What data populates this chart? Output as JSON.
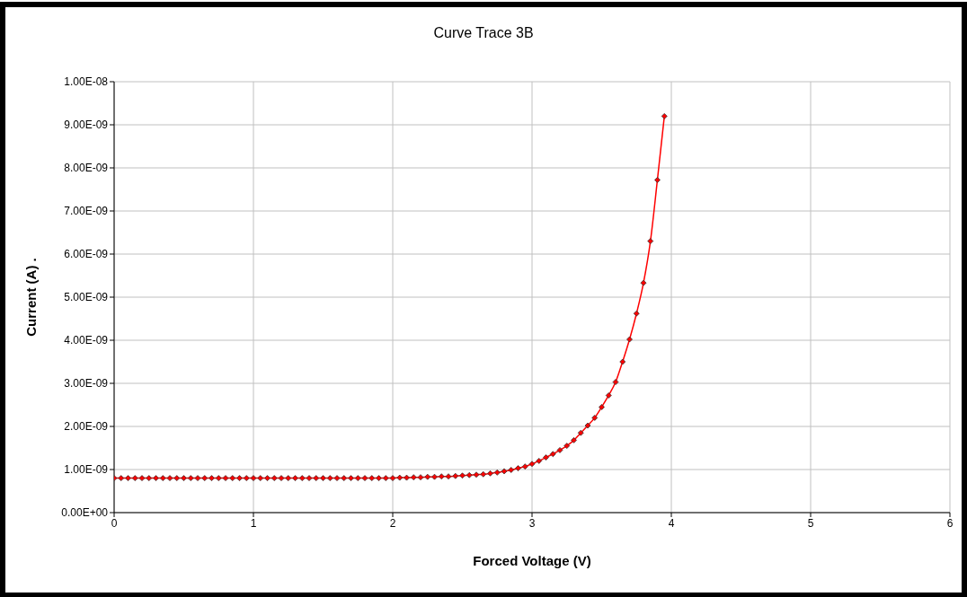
{
  "chart_data": {
    "type": "line",
    "title": "Curve Trace 3B",
    "xlabel": "Forced Voltage (V)",
    "ylabel": "Current (A)   .",
    "x": [
      0,
      0.05,
      0.1,
      0.15,
      0.2,
      0.25,
      0.3,
      0.35,
      0.4,
      0.45,
      0.5,
      0.55,
      0.6,
      0.65,
      0.7,
      0.75,
      0.8,
      0.85,
      0.9,
      0.95,
      1,
      1.05,
      1.1,
      1.15,
      1.2,
      1.25,
      1.3,
      1.35,
      1.4,
      1.45,
      1.5,
      1.55,
      1.6,
      1.65,
      1.7,
      1.75,
      1.8,
      1.85,
      1.9,
      1.95,
      2,
      2.05,
      2.1,
      2.15,
      2.2,
      2.25,
      2.3,
      2.35,
      2.4,
      2.45,
      2.5,
      2.55,
      2.6,
      2.65,
      2.7,
      2.75,
      2.8,
      2.85,
      2.9,
      2.95,
      3,
      3.05,
      3.1,
      3.15,
      3.2,
      3.25,
      3.3,
      3.35,
      3.4,
      3.45,
      3.5,
      3.55,
      3.6,
      3.65,
      3.7,
      3.75,
      3.8,
      3.85,
      3.9,
      3.95
    ],
    "series": [
      {
        "color": "#ff0000",
        "values": [
          8e-10,
          8e-10,
          8e-10,
          8e-10,
          8e-10,
          8e-10,
          8e-10,
          8e-10,
          8e-10,
          8e-10,
          8e-10,
          8e-10,
          8e-10,
          8e-10,
          8e-10,
          8e-10,
          8e-10,
          8e-10,
          8e-10,
          8e-10,
          8e-10,
          8e-10,
          8e-10,
          8e-10,
          8e-10,
          8e-10,
          8e-10,
          8e-10,
          8e-10,
          8e-10,
          8e-10,
          8e-10,
          8e-10,
          8e-10,
          8e-10,
          8e-10,
          8e-10,
          8e-10,
          8e-10,
          8e-10,
          8e-10,
          8.1e-10,
          8.1e-10,
          8.2e-10,
          8.2e-10,
          8.3e-10,
          8.3e-10,
          8.4e-10,
          8.4e-10,
          8.5e-10,
          8.6e-10,
          8.7e-10,
          8.8e-10,
          8.9e-10,
          9.1e-10,
          9.3e-10,
          9.6e-10,
          9.9e-10,
          1.03e-09,
          1.07e-09,
          1.13e-09,
          1.2e-09,
          1.28e-09,
          1.36e-09,
          1.45e-09,
          1.55e-09,
          1.68e-09,
          1.85e-09,
          2.02e-09,
          2.2e-09,
          2.45e-09,
          2.72e-09,
          3.03e-09,
          3.5e-09,
          4.02e-09,
          4.62e-09,
          5.33e-09,
          6.3e-09,
          7.72e-09,
          9.2e-09
        ]
      }
    ],
    "xlim": [
      0,
      6
    ],
    "xticks": [
      0,
      1,
      2,
      3,
      4,
      5,
      6
    ],
    "ylim": [
      0,
      1e-08
    ],
    "yticks": [
      {
        "value": 0,
        "label": "0.00E+00"
      },
      {
        "value": 1e-09,
        "label": "1.00E-09"
      },
      {
        "value": 2e-09,
        "label": "2.00E-09"
      },
      {
        "value": 3e-09,
        "label": "3.00E-09"
      },
      {
        "value": 4e-09,
        "label": "4.00E-09"
      },
      {
        "value": 5e-09,
        "label": "5.00E-09"
      },
      {
        "value": 6e-09,
        "label": "6.00E-09"
      },
      {
        "value": 7e-09,
        "label": "7.00E-09"
      },
      {
        "value": 8e-09,
        "label": "8.00E-09"
      },
      {
        "value": 9e-09,
        "label": "9.00E-09"
      },
      {
        "value": 1e-08,
        "label": "1.00E-08"
      }
    ],
    "grid": true,
    "marker": "diamond",
    "line_style": "solid"
  }
}
